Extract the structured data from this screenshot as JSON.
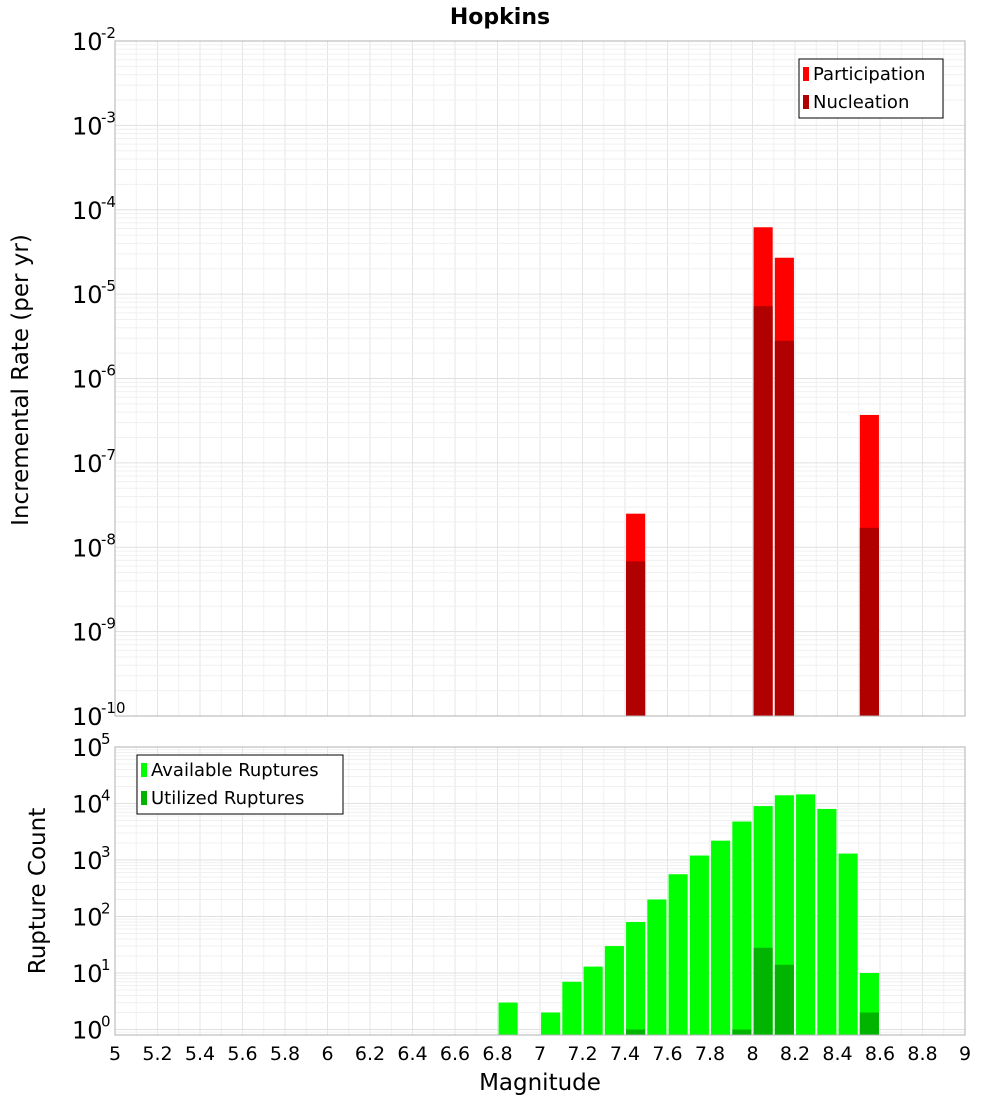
{
  "chart_data": [
    {
      "type": "bar",
      "title": "Hopkins",
      "ylabel": "Incremental Rate (per yr)",
      "xlabel": "",
      "xlim": [
        5,
        9
      ],
      "ylim": [
        1e-10,
        0.01
      ],
      "yscale": "log",
      "ytick_exponents": [
        "-2",
        "-3",
        "-4",
        "-5",
        "-6",
        "-7",
        "-8",
        "-9",
        "-10"
      ],
      "grid": true,
      "legend_position": "top-right",
      "series": [
        {
          "name": "Participation",
          "color": "#ff0000",
          "points": [
            {
              "x": 7.45,
              "y": 2.5e-08
            },
            {
              "x": 8.05,
              "y": 6.2e-05
            },
            {
              "x": 8.15,
              "y": 2.7e-05
            },
            {
              "x": 8.55,
              "y": 3.7e-07
            }
          ]
        },
        {
          "name": "Nucleation",
          "color": "#b00000",
          "points": [
            {
              "x": 7.45,
              "y": 6.8e-09
            },
            {
              "x": 8.05,
              "y": 7.2e-06
            },
            {
              "x": 8.15,
              "y": 2.8e-06
            },
            {
              "x": 8.55,
              "y": 1.7e-08
            }
          ]
        }
      ]
    },
    {
      "type": "bar",
      "title": "",
      "ylabel": "Rupture Count",
      "xlabel": "Magnitude",
      "xlim": [
        5,
        9
      ],
      "xticks": [
        "5",
        "5.2",
        "5.4",
        "5.6",
        "5.8",
        "6",
        "6.2",
        "6.4",
        "6.6",
        "6.8",
        "7",
        "7.2",
        "7.4",
        "7.6",
        "7.8",
        "8",
        "8.2",
        "8.4",
        "8.6",
        "8.8",
        "9"
      ],
      "ylim": [
        0.8,
        100000.0
      ],
      "yscale": "log",
      "ytick_exponents": [
        "5",
        "4",
        "3",
        "2",
        "1",
        "0"
      ],
      "grid": true,
      "legend_position": "top-left",
      "series": [
        {
          "name": "Available Ruptures",
          "color": "#00ff00",
          "points": [
            {
              "x": 6.85,
              "y": 3
            },
            {
              "x": 7.05,
              "y": 2
            },
            {
              "x": 7.15,
              "y": 7
            },
            {
              "x": 7.25,
              "y": 13
            },
            {
              "x": 7.35,
              "y": 30
            },
            {
              "x": 7.45,
              "y": 80
            },
            {
              "x": 7.55,
              "y": 200
            },
            {
              "x": 7.65,
              "y": 560
            },
            {
              "x": 7.75,
              "y": 1200
            },
            {
              "x": 7.85,
              "y": 2200
            },
            {
              "x": 7.95,
              "y": 4800
            },
            {
              "x": 8.05,
              "y": 9000
            },
            {
              "x": 8.15,
              "y": 14000
            },
            {
              "x": 8.25,
              "y": 14500
            },
            {
              "x": 8.35,
              "y": 8000
            },
            {
              "x": 8.45,
              "y": 1300
            },
            {
              "x": 8.55,
              "y": 10
            }
          ]
        },
        {
          "name": "Utilized Ruptures",
          "color": "#00b400",
          "points": [
            {
              "x": 7.45,
              "y": 1
            },
            {
              "x": 7.95,
              "y": 1
            },
            {
              "x": 8.05,
              "y": 28
            },
            {
              "x": 8.15,
              "y": 14
            },
            {
              "x": 8.55,
              "y": 2
            }
          ]
        }
      ]
    }
  ]
}
